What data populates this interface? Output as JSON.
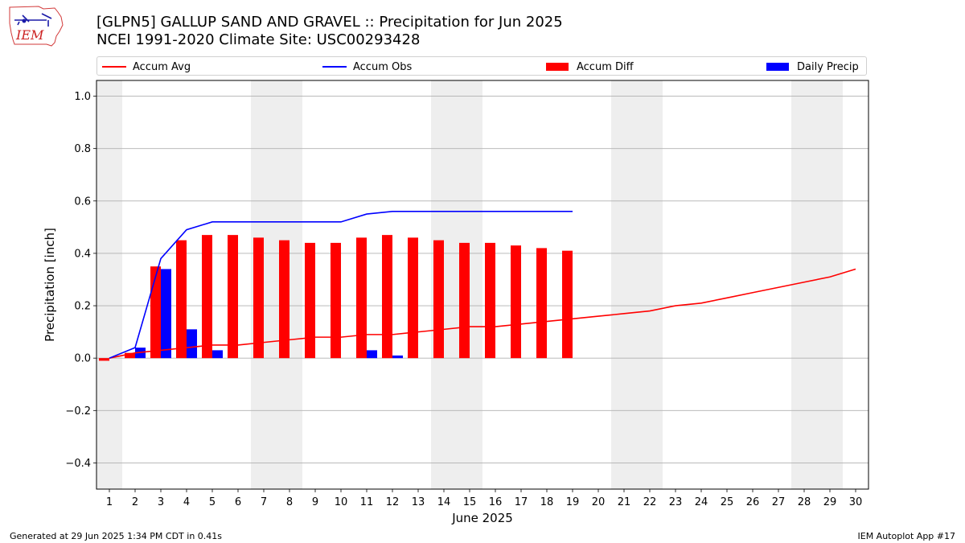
{
  "logo": {
    "text": "IEM"
  },
  "title": {
    "line1": "[GLPN5] GALLUP SAND AND GRAVEL :: Precipitation for Jun 2025",
    "line2": "NCEI 1991-2020 Climate Site: USC00293428"
  },
  "legend": {
    "accum_avg": "Accum Avg",
    "accum_obs": "Accum Obs",
    "accum_diff": "Accum Diff",
    "daily_precip": "Daily Precip"
  },
  "footer": {
    "left": "Generated at 29 Jun 2025 1:34 PM CDT in 0.41s",
    "right": "IEM Autoplot App #17"
  },
  "colors": {
    "accum_avg": "#ff0000",
    "accum_obs": "#0000ff",
    "accum_diff": "#ff0000",
    "daily_precip": "#0000ff",
    "weekend_band": "#eeeeee",
    "grid": "#b0b0b0"
  },
  "chart_data": {
    "type": "bar",
    "xlabel": "June 2025",
    "ylabel": "Precipitation [inch]",
    "ylim": [
      -0.5,
      1.06
    ],
    "yticks": [
      -0.4,
      -0.2,
      0.0,
      0.2,
      0.4,
      0.6,
      0.8,
      1.0
    ],
    "ytick_labels": [
      "−0.4",
      "−0.2",
      "0.0",
      "0.2",
      "0.4",
      "0.6",
      "0.8",
      "1.0"
    ],
    "xlim": [
      0.5,
      30.5
    ],
    "days": [
      1,
      2,
      3,
      4,
      5,
      6,
      7,
      8,
      9,
      10,
      11,
      12,
      13,
      14,
      15,
      16,
      17,
      18,
      19,
      20,
      21,
      22,
      23,
      24,
      25,
      26,
      27,
      28,
      29,
      30
    ],
    "grid": "horizontal",
    "legend_position": "top",
    "weekend_bands": [
      [
        0.5,
        1.5
      ],
      [
        6.5,
        8.5
      ],
      [
        13.5,
        15.5
      ],
      [
        20.5,
        22.5
      ],
      [
        27.5,
        29.5
      ]
    ],
    "series": [
      {
        "name": "Accum Avg",
        "type": "line",
        "x": [
          1,
          2,
          3,
          4,
          5,
          6,
          7,
          8,
          9,
          10,
          11,
          12,
          13,
          14,
          15,
          16,
          17,
          18,
          19,
          20,
          21,
          22,
          23,
          24,
          25,
          26,
          27,
          28,
          29,
          30
        ],
        "values": [
          0.0,
          0.02,
          0.03,
          0.04,
          0.05,
          0.05,
          0.06,
          0.07,
          0.08,
          0.08,
          0.09,
          0.09,
          0.1,
          0.11,
          0.12,
          0.12,
          0.13,
          0.14,
          0.15,
          0.16,
          0.17,
          0.18,
          0.2,
          0.21,
          0.23,
          0.25,
          0.27,
          0.29,
          0.31,
          0.34
        ]
      },
      {
        "name": "Accum Obs",
        "type": "line",
        "x": [
          1,
          2,
          3,
          4,
          5,
          6,
          7,
          8,
          9,
          10,
          11,
          12,
          13,
          14,
          15,
          16,
          17,
          18,
          19
        ],
        "values": [
          0.0,
          0.04,
          0.38,
          0.49,
          0.52,
          0.52,
          0.52,
          0.52,
          0.52,
          0.52,
          0.55,
          0.56,
          0.56,
          0.56,
          0.56,
          0.56,
          0.56,
          0.56,
          0.56
        ]
      },
      {
        "name": "Accum Diff",
        "type": "bar",
        "x": [
          1,
          2,
          3,
          4,
          5,
          6,
          7,
          8,
          9,
          10,
          11,
          12,
          13,
          14,
          15,
          16,
          17,
          18,
          19
        ],
        "values": [
          -0.01,
          0.02,
          0.35,
          0.45,
          0.47,
          0.47,
          0.46,
          0.45,
          0.44,
          0.44,
          0.46,
          0.47,
          0.46,
          0.45,
          0.44,
          0.44,
          0.43,
          0.42,
          0.41
        ]
      },
      {
        "name": "Daily Precip",
        "type": "bar",
        "x": [
          1,
          2,
          3,
          4,
          5,
          6,
          7,
          8,
          9,
          10,
          11,
          12,
          13,
          14,
          15,
          16,
          17,
          18,
          19
        ],
        "values": [
          0.0,
          0.04,
          0.34,
          0.11,
          0.03,
          0.0,
          0.0,
          0.0,
          0.0,
          0.0,
          0.03,
          0.01,
          0.0,
          0.0,
          0.0,
          0.0,
          0.0,
          0.0,
          0.0
        ]
      }
    ]
  }
}
